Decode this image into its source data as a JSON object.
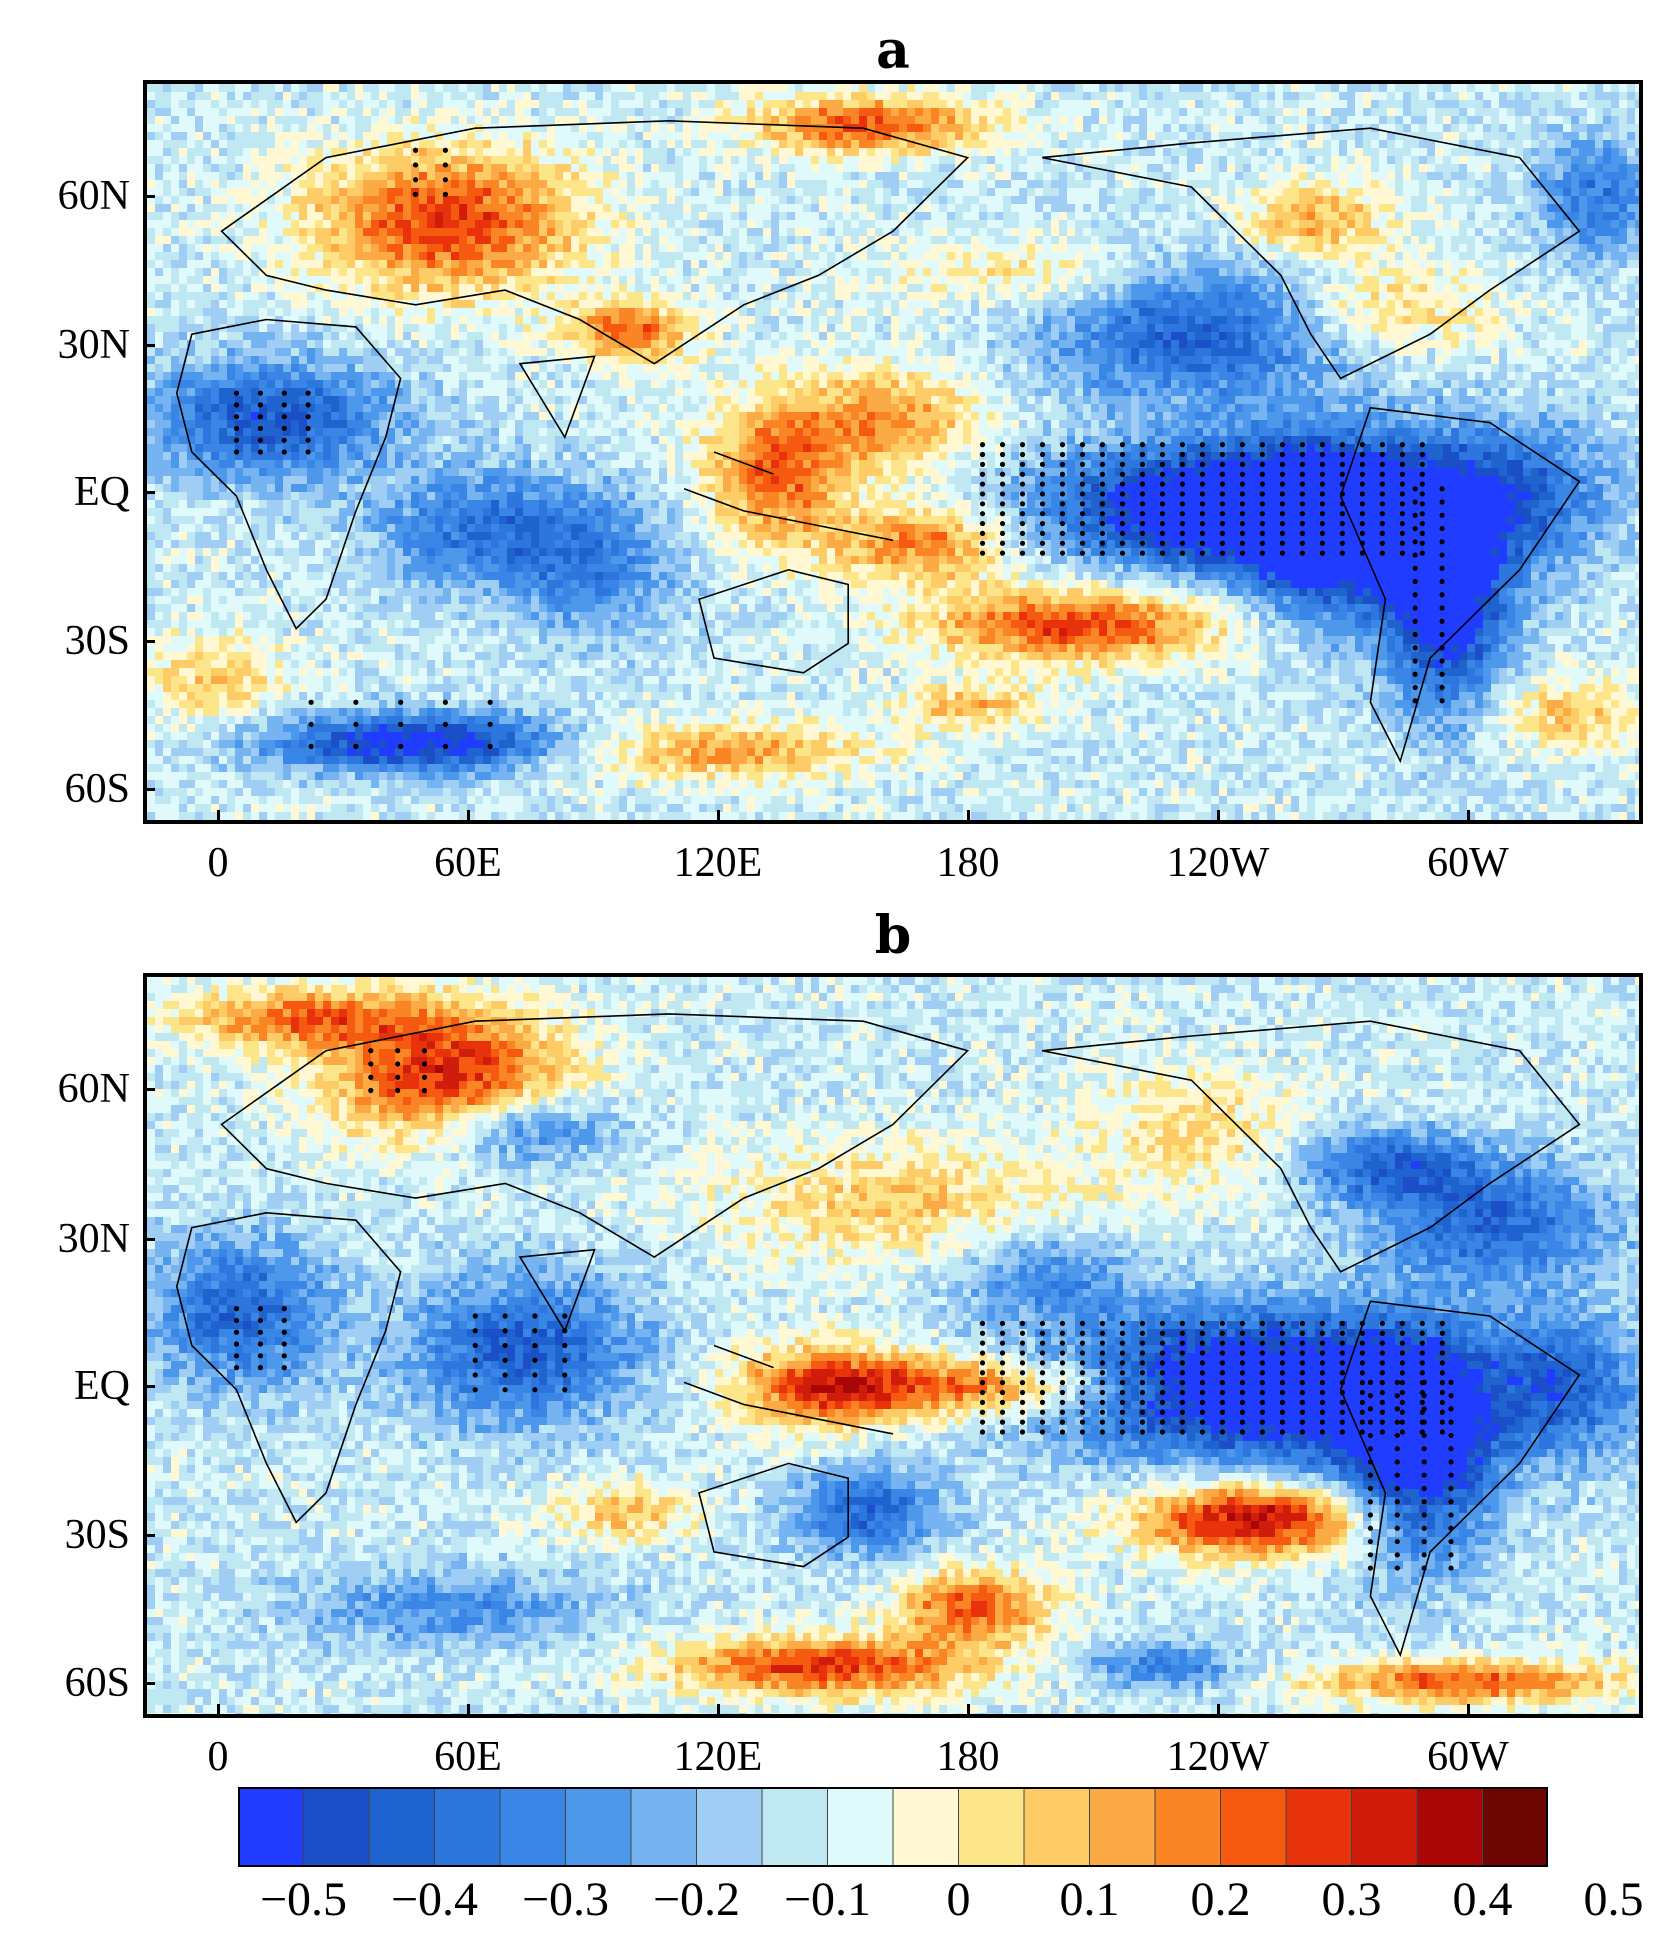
{
  "panels": [
    {
      "id": "a",
      "title": "a",
      "lat_ticks": [
        "60N",
        "30N",
        "EQ",
        "30S",
        "60S"
      ],
      "lon_ticks": [
        "0",
        "60E",
        "120E",
        "180",
        "120W",
        "60W"
      ],
      "anomaly_features": [
        {
          "region": "tropical-eastern-pacific",
          "sign": "negative",
          "strength": -0.55
        },
        {
          "region": "south-pacific-convergence",
          "sign": "positive",
          "strength": 0.4
        },
        {
          "region": "maritime-continent",
          "sign": "positive",
          "strength": 0.35
        },
        {
          "region": "northern-europe",
          "sign": "positive",
          "strength": 0.4
        },
        {
          "region": "north-africa",
          "sign": "negative",
          "strength": -0.35
        },
        {
          "region": "southern-indian-ocean",
          "sign": "negative",
          "strength": -0.45
        },
        {
          "region": "north-pacific",
          "sign": "negative",
          "strength": -0.3
        }
      ]
    },
    {
      "id": "b",
      "title": "b",
      "lat_ticks": [
        "60N",
        "30N",
        "EQ",
        "30S",
        "60S"
      ],
      "lon_ticks": [
        "0",
        "60E",
        "120E",
        "180",
        "120W",
        "60W"
      ],
      "anomaly_features": [
        {
          "region": "tropical-eastern-pacific",
          "sign": "negative",
          "strength": -0.55
        },
        {
          "region": "south-pacific-convergence",
          "sign": "positive",
          "strength": 0.5
        },
        {
          "region": "maritime-continent",
          "sign": "positive",
          "strength": 0.35
        },
        {
          "region": "northern-europe",
          "sign": "positive",
          "strength": 0.45
        },
        {
          "region": "tropical-indian-ocean",
          "sign": "negative",
          "strength": -0.3
        },
        {
          "region": "southern-ocean-australia",
          "sign": "positive",
          "strength": 0.45
        },
        {
          "region": "north-pacific",
          "sign": "positive",
          "strength": 0.2
        }
      ]
    }
  ],
  "colorbar": {
    "labels": [
      "−0.5",
      "−0.4",
      "−0.3",
      "−0.2",
      "−0.1",
      "0",
      "0.1",
      "0.2",
      "0.3",
      "0.4",
      "0.5"
    ],
    "colors": [
      "#1f3cff",
      "#1a4fc7",
      "#1f63cf",
      "#2c76dd",
      "#3a86e6",
      "#4d98ea",
      "#76b4f1",
      "#9fcdf4",
      "#bfe8f2",
      "#e0fafc",
      "#fff8d2",
      "#fde68a",
      "#fdcc66",
      "#fcaa45",
      "#f98524",
      "#f65a10",
      "#e8320c",
      "#d01c0b",
      "#a90707",
      "#6d0503"
    ]
  }
}
